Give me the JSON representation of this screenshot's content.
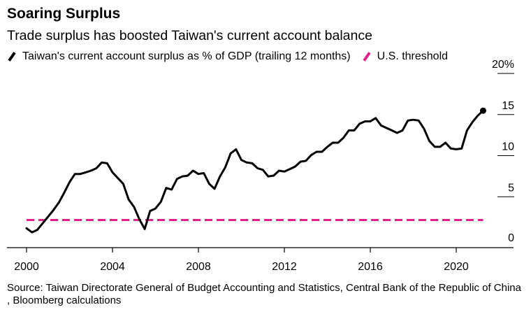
{
  "header": {
    "title": "Soaring Surplus",
    "subtitle": "Trade surplus has boosted Taiwan's current account balance"
  },
  "footer": {
    "source": "Source: Taiwan Directorate General of Budget Accounting and Statistics, Central Bank of the Republic of China , Bloomberg calculations"
  },
  "colors": {
    "surplus": "#000000",
    "threshold": "#e0218a",
    "axis": "#000000"
  },
  "chart_data": {
    "type": "line",
    "title": "Soaring Surplus",
    "subtitle": "Trade surplus has boosted Taiwan's current account balance",
    "xlabel": "",
    "ylabel": "",
    "xlim": [
      2000,
      2022
    ],
    "ylim": [
      0,
      20
    ],
    "x_ticks": [
      "2000",
      "2004",
      "2008",
      "2012",
      "2016",
      "2020"
    ],
    "y_ticks": [
      "20%",
      "15",
      "10",
      "5",
      "0"
    ],
    "grid": false,
    "legend_position": "top-left",
    "series": [
      {
        "name": "Taiwan's current account surplus as % of GDP (trailing 12 months)",
        "style": "solid",
        "end_marker": true,
        "x": [
          2000.0,
          2000.25,
          2000.5,
          2000.75,
          2001.0,
          2001.25,
          2001.5,
          2001.75,
          2002.0,
          2002.25,
          2002.5,
          2002.75,
          2003.0,
          2003.25,
          2003.5,
          2003.75,
          2004.0,
          2004.25,
          2004.5,
          2004.75,
          2005.0,
          2005.25,
          2005.5,
          2005.75,
          2006.0,
          2006.25,
          2006.5,
          2006.75,
          2007.0,
          2007.25,
          2007.5,
          2007.75,
          2008.0,
          2008.25,
          2008.5,
          2008.75,
          2009.0,
          2009.25,
          2009.5,
          2009.75,
          2010.0,
          2010.25,
          2010.5,
          2010.75,
          2011.0,
          2011.25,
          2011.5,
          2011.75,
          2012.0,
          2012.25,
          2012.5,
          2012.75,
          2013.0,
          2013.25,
          2013.5,
          2013.75,
          2014.0,
          2014.25,
          2014.5,
          2014.75,
          2015.0,
          2015.25,
          2015.5,
          2015.75,
          2016.0,
          2016.25,
          2016.5,
          2016.75,
          2017.0,
          2017.25,
          2017.5,
          2017.75,
          2018.0,
          2018.25,
          2018.5,
          2018.75,
          2019.0,
          2019.25,
          2019.5,
          2019.75,
          2020.0,
          2020.25,
          2020.5,
          2020.75,
          2021.0,
          2021.25
        ],
        "values": [
          1.0,
          0.5,
          0.8,
          1.6,
          2.4,
          3.2,
          4.1,
          5.3,
          6.6,
          7.6,
          7.6,
          7.8,
          8.0,
          8.3,
          9.0,
          8.9,
          7.8,
          7.1,
          6.4,
          4.5,
          3.6,
          2.1,
          0.9,
          3.1,
          3.4,
          4.2,
          5.9,
          5.7,
          7.0,
          7.3,
          7.4,
          8.0,
          7.6,
          7.7,
          6.4,
          5.8,
          7.3,
          8.4,
          10.1,
          10.6,
          9.3,
          9.0,
          8.9,
          8.3,
          8.1,
          7.3,
          7.4,
          8.0,
          7.9,
          8.2,
          8.5,
          9.1,
          9.2,
          9.9,
          10.3,
          10.3,
          10.9,
          11.4,
          11.4,
          12.0,
          12.9,
          12.9,
          13.7,
          14.0,
          14.0,
          14.4,
          13.5,
          13.2,
          12.9,
          12.6,
          12.9,
          14.1,
          14.2,
          14.1,
          13.1,
          11.6,
          10.9,
          10.9,
          11.4,
          10.7,
          10.6,
          10.7,
          12.9,
          13.9,
          14.7,
          15.3
        ]
      },
      {
        "name": "U.S. threshold",
        "style": "dashed",
        "x": [
          2000.0,
          2021.25
        ],
        "values": [
          2.0,
          2.0
        ]
      }
    ]
  }
}
